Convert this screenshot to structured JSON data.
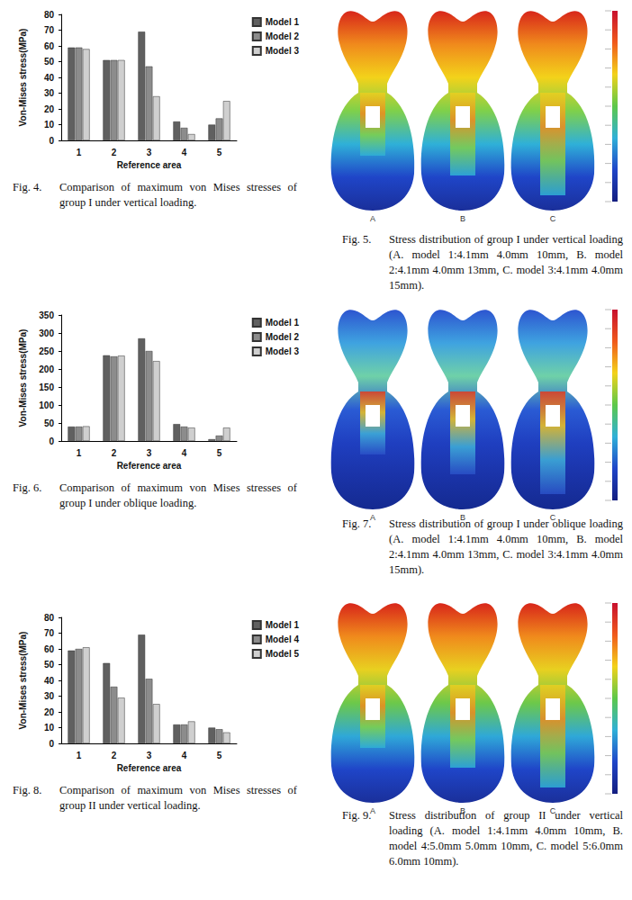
{
  "chart_data": [
    {
      "type": "bar",
      "caption": {
        "label": "Fig. 4.",
        "text": "Comparison of maximum von Mises stresses of group I under vertical loading."
      },
      "x_label": "Reference area",
      "y_label": "Von-Mises stress(MPa)",
      "categories": [
        "1",
        "2",
        "3",
        "4",
        "5"
      ],
      "series": [
        {
          "name": "Model 1",
          "color": "#606060",
          "values": [
            59,
            51,
            69,
            12,
            10
          ]
        },
        {
          "name": "Model 2",
          "color": "#8c8c8c",
          "values": [
            59,
            51,
            47,
            8,
            14
          ]
        },
        {
          "name": "Model 3",
          "color": "#cfcfcf",
          "values": [
            58,
            51,
            28,
            4,
            25
          ]
        }
      ],
      "ylim": [
        0,
        80
      ],
      "yticks": [
        0,
        10,
        20,
        30,
        40,
        50,
        60,
        70,
        80
      ],
      "grid": false,
      "legend": "right"
    },
    {
      "type": "bar",
      "caption": {
        "label": "Fig. 6.",
        "text": "Comparison of maximum von Mises stresses of group I under oblique loading."
      },
      "x_label": "Reference area",
      "y_label": "Von-Mises stress(MPa)",
      "categories": [
        "1",
        "2",
        "3",
        "4",
        "5"
      ],
      "series": [
        {
          "name": "Model 1",
          "color": "#606060",
          "values": [
            40,
            238,
            285,
            47,
            5
          ]
        },
        {
          "name": "Model 2",
          "color": "#8c8c8c",
          "values": [
            40,
            235,
            250,
            40,
            15
          ]
        },
        {
          "name": "Model 3",
          "color": "#cfcfcf",
          "values": [
            41,
            237,
            222,
            37,
            37
          ]
        }
      ],
      "ylim": [
        0,
        350
      ],
      "yticks": [
        0,
        50,
        100,
        150,
        200,
        250,
        300,
        350
      ],
      "grid": false,
      "legend": "right"
    },
    {
      "type": "bar",
      "caption": {
        "label": "Fig. 8.",
        "text": "Comparison of maximum von Mises stresses of group II under vertical loading."
      },
      "x_label": "Reference area",
      "y_label": "Von-Mises stress(MPa)",
      "categories": [
        "1",
        "2",
        "3",
        "4",
        "5"
      ],
      "series": [
        {
          "name": "Model 1",
          "color": "#606060",
          "values": [
            59,
            51,
            69,
            12,
            10
          ]
        },
        {
          "name": "Model 4",
          "color": "#8c8c8c",
          "values": [
            60,
            36,
            41,
            12,
            9
          ]
        },
        {
          "name": "Model 5",
          "color": "#cfcfcf",
          "values": [
            61,
            29,
            25,
            14,
            7
          ]
        }
      ],
      "ylim": [
        0,
        80
      ],
      "yticks": [
        0,
        10,
        20,
        30,
        40,
        50,
        60,
        70,
        80
      ],
      "grid": false,
      "legend": "right"
    }
  ],
  "images": [
    {
      "caption": {
        "label": "Fig. 5.",
        "text": "Stress distribution of group I under vertical loading (A. model 1:4.1mm 4.0mm 10mm, B. model 2:4.1mm 4.0mm 13mm, C. model 3:4.1mm 4.0mm 15mm)."
      },
      "panel_labels": [
        "A",
        "B",
        "C"
      ]
    },
    {
      "caption": {
        "label": "Fig. 7.",
        "text": "Stress distribution of group I under oblique loading (A. model 1:4.1mm 4.0mm 10mm, B. model 2:4.1mm 4.0mm 13mm, C. model 3:4.1mm 4.0mm 15mm)."
      },
      "panel_labels": [
        "A",
        "B",
        "C"
      ]
    },
    {
      "caption": {
        "label": "Fig. 9.",
        "text": "Stress distribution of group II under vertical loading (A. model 1:4.1mm 4.0mm 10mm, B. model 4:5.0mm 5.0mm 10mm, C. model 5:6.0mm 6.0mm 10mm)."
      },
      "panel_labels": [
        "A",
        "B",
        "C"
      ]
    }
  ]
}
